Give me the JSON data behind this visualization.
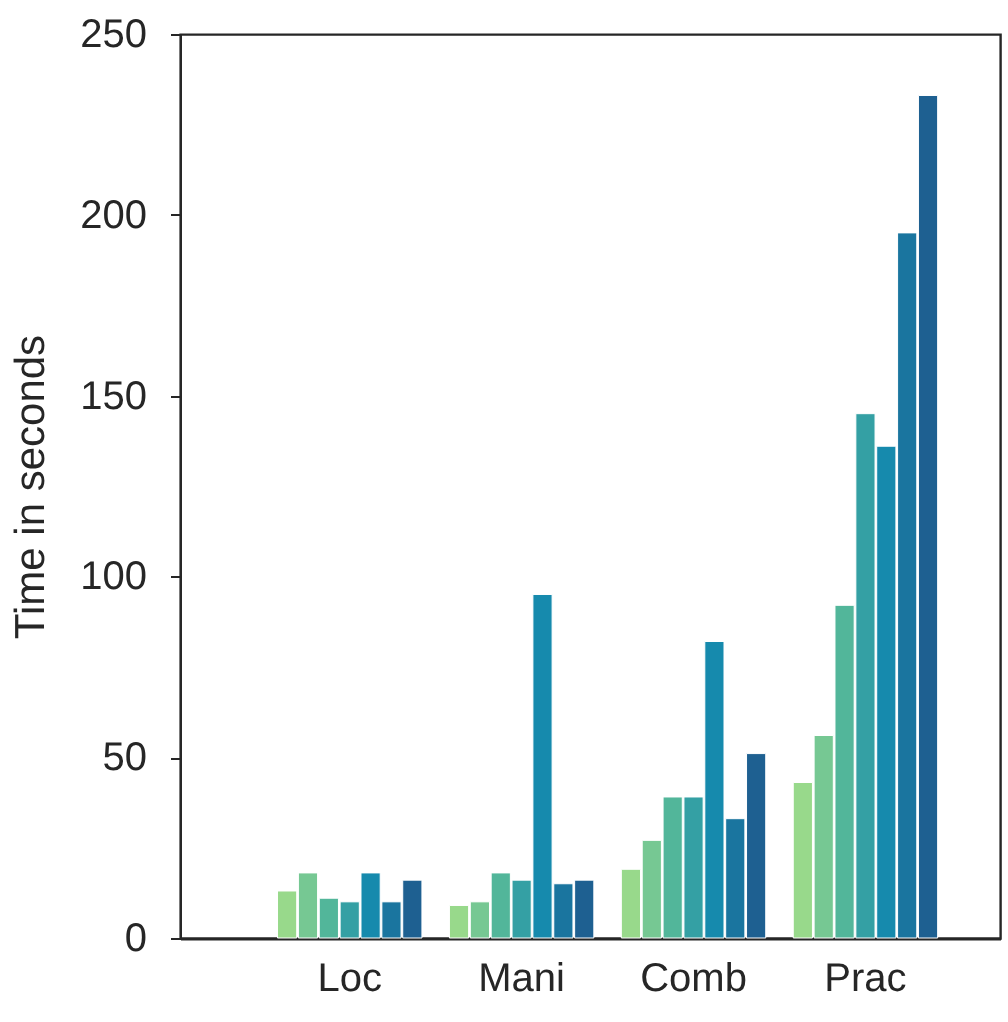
{
  "chart_data": {
    "type": "bar",
    "ylabel": "Time in seconds",
    "categories": [
      "Loc",
      "Mani",
      "Comb",
      "Prac"
    ],
    "series": [
      {
        "color": "#98d98b",
        "values": [
          13,
          9,
          19,
          43
        ]
      },
      {
        "color": "#76c893",
        "values": [
          18,
          10,
          27,
          56
        ]
      },
      {
        "color": "#52b69a",
        "values": [
          11,
          18,
          39,
          92
        ]
      },
      {
        "color": "#34a0a4",
        "values": [
          10,
          16,
          39,
          145
        ]
      },
      {
        "color": "#168aad",
        "values": [
          18,
          95,
          82,
          136
        ]
      },
      {
        "color": "#1a759f",
        "values": [
          10,
          15,
          33,
          195
        ]
      },
      {
        "color": "#1e6091",
        "values": [
          16,
          16,
          51,
          233
        ]
      }
    ],
    "ylim": [
      0,
      250
    ],
    "yticks": [
      0,
      50,
      100,
      150,
      200,
      250
    ],
    "grid": false
  }
}
